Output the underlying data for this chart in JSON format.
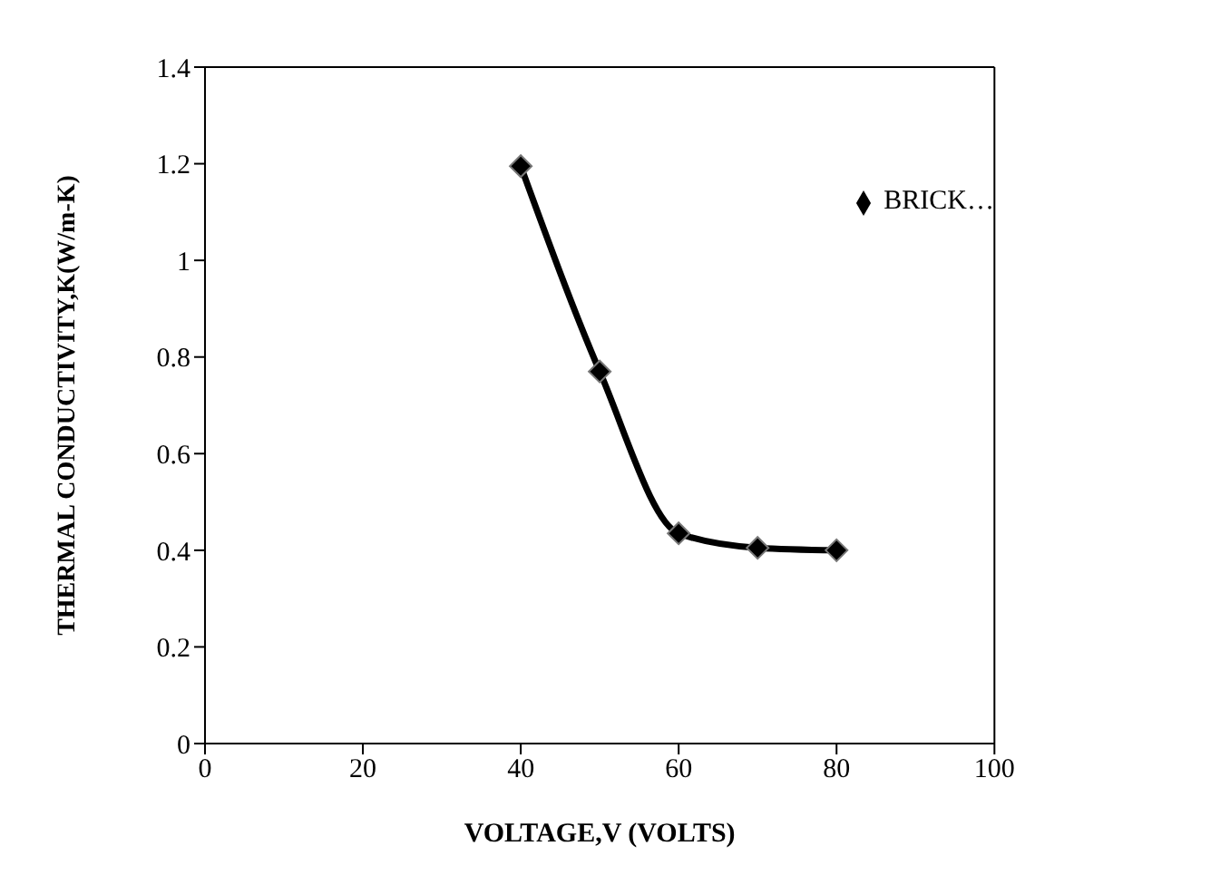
{
  "chart_data": {
    "type": "line",
    "xlabel": "VOLTAGE,V  (VOLTS)",
    "ylabel": "THERMAL  CONDUCTIVITY,K(W/m-K)",
    "x": [
      40,
      50,
      60,
      70,
      80
    ],
    "series": [
      {
        "name": "BRICK…",
        "color": "#000000",
        "values": [
          1.195,
          0.77,
          0.435,
          0.405,
          0.4
        ]
      }
    ],
    "xlim": [
      0,
      100
    ],
    "xticks": [
      0,
      20,
      40,
      60,
      80,
      100
    ],
    "ylim": [
      0,
      1.4
    ],
    "yticks": [
      0,
      0.2,
      0.4,
      0.6,
      0.8,
      1,
      1.2,
      1.4
    ],
    "grid": false,
    "legend": "top right",
    "marker": "diamond",
    "line_style": "solid"
  }
}
